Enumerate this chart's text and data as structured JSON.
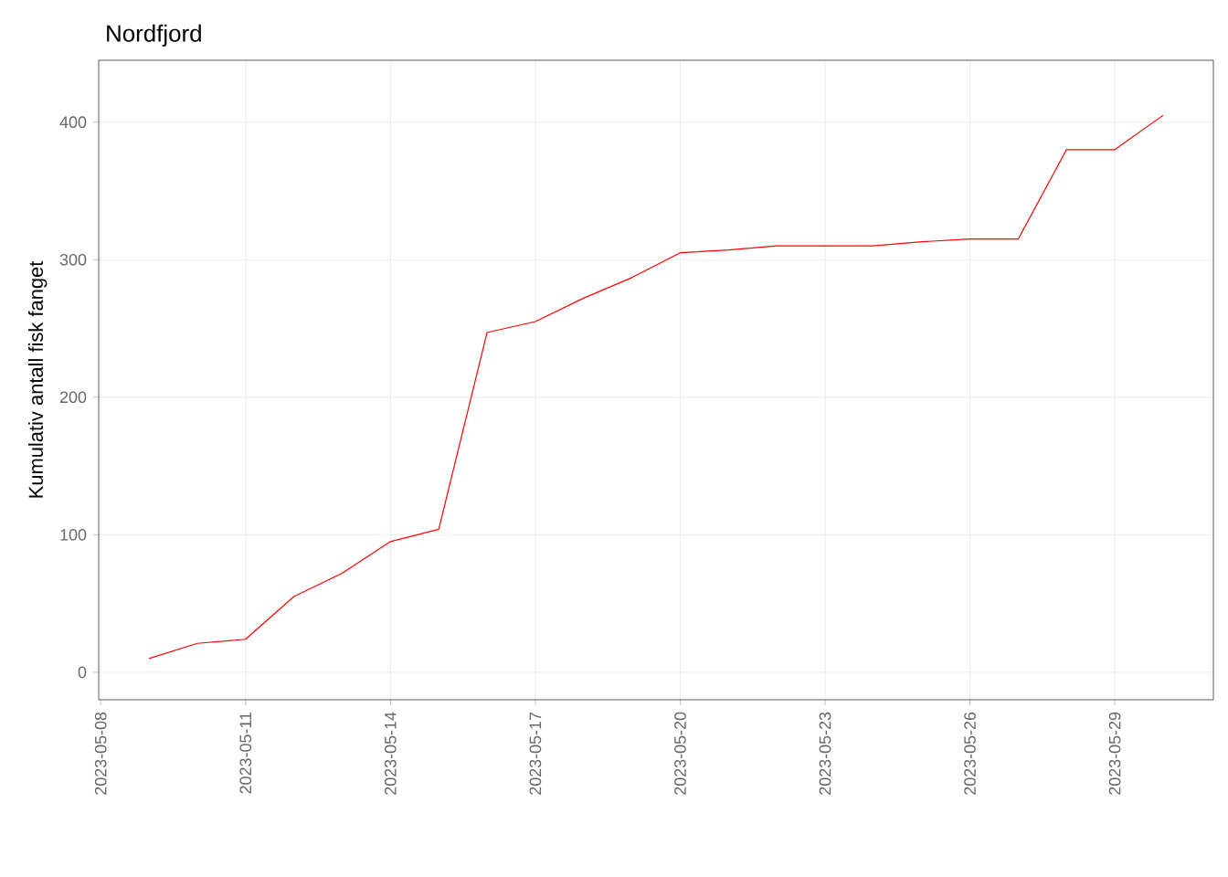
{
  "chart_data": {
    "type": "line",
    "title": "Nordfjord",
    "ylabel": "Kumulativ antall fisk fanget",
    "x": [
      "2023-05-09",
      "2023-05-10",
      "2023-05-11",
      "2023-05-12",
      "2023-05-13",
      "2023-05-14",
      "2023-05-15",
      "2023-05-16",
      "2023-05-17",
      "2023-05-18",
      "2023-05-19",
      "2023-05-20",
      "2023-05-21",
      "2023-05-22",
      "2023-05-23",
      "2023-05-24",
      "2023-05-25",
      "2023-05-26",
      "2023-05-27",
      "2023-05-28",
      "2023-05-29",
      "2023-05-30"
    ],
    "series": [
      {
        "color": "#ff0000",
        "values": [
          10,
          21,
          24,
          55,
          72,
          95,
          104,
          247,
          255,
          272,
          287,
          305,
          307,
          310,
          310,
          310,
          313,
          315,
          315,
          380,
          380,
          405
        ]
      }
    ],
    "xlim": [
      "2023-05-07T23:00",
      "2023-05-31T01:00"
    ],
    "xticks": [
      "2023-05-08",
      "2023-05-11",
      "2023-05-14",
      "2023-05-17",
      "2023-05-20",
      "2023-05-23",
      "2023-05-26",
      "2023-05-29"
    ],
    "ylim": [
      -20,
      445
    ],
    "yticks": [
      0,
      100,
      200,
      300,
      400
    ],
    "grid": true,
    "line_style": "solid",
    "marker": "none"
  }
}
